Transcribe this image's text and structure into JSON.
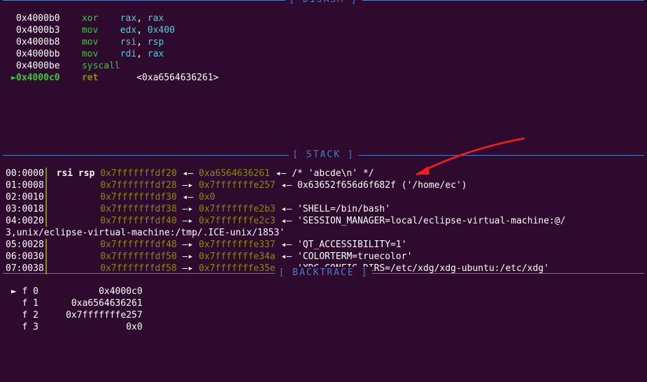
{
  "sections": {
    "disasm": "DISASM",
    "stack": "STACK",
    "backtrace": "BACKTRACE"
  },
  "disasm": [
    {
      "pc": "   ",
      "addr": "0x4000b0",
      "op": "xor",
      "args_a": "rax",
      "sep": ", ",
      "args_b": "rax",
      "op_color": "green",
      "a_color": "cyan",
      "b_color": "cyan"
    },
    {
      "pc": "   ",
      "addr": "0x4000b3",
      "op": "mov",
      "args_a": "edx",
      "sep": ", ",
      "args_b": "0x400",
      "op_color": "green",
      "a_color": "cyan",
      "b_color": "cyan"
    },
    {
      "pc": "   ",
      "addr": "0x4000b8",
      "op": "mov",
      "args_a": "rsi",
      "sep": ", ",
      "args_b": "rsp",
      "op_color": "green",
      "a_color": "cyan",
      "b_color": "cyan"
    },
    {
      "pc": "   ",
      "addr": "0x4000bb",
      "op": "mov",
      "args_a": "rdi",
      "sep": ", ",
      "args_b": "rax",
      "op_color": "green",
      "a_color": "cyan",
      "b_color": "cyan"
    },
    {
      "pc": "   ",
      "addr": "0x4000be",
      "op": "syscall",
      "args_a": "",
      "sep": "",
      "args_b": "",
      "op_color": "green",
      "a_color": "",
      "b_color": ""
    },
    {
      "pc": " ► ",
      "addr": "0x4000c0",
      "op": "ret",
      "args_a": "",
      "sep": "   ",
      "args_b": "<0xa6564636261>",
      "op_color": "olive",
      "a_color": "",
      "b_color": "white",
      "addr_color": "green",
      "pc_color": "green",
      "bold": true
    }
  ],
  "stack": [
    {
      "idx": "00:0000",
      "sep": "│",
      "regs": " rsi rsp ",
      "addr": "0x7fffffffdf20",
      "v1": "0xa6564636261",
      "v2": "",
      "v3": "",
      "note": "/* 'abcde\\n' */",
      "regs_bold": true
    },
    {
      "idx": "01:0008",
      "sep": "│",
      "regs": "         ",
      "addr": "0x7fffffffdf28",
      "v1": "0x7fffffffe257",
      "v2": "",
      "v3": "0x63652f656d6f682f",
      "note": "('/home/ec')"
    },
    {
      "idx": "02:0010",
      "sep": "│",
      "regs": "         ",
      "addr": "0x7fffffffdf30",
      "v1": "0x0",
      "v2": "",
      "v3": "",
      "note": ""
    },
    {
      "idx": "03:0018",
      "sep": "│",
      "regs": "         ",
      "addr": "0x7fffffffdf38",
      "v1": "0x7fffffffe2b3",
      "v2": "",
      "v3": "",
      "note": "'SHELL=/bin/bash'"
    },
    {
      "idx": "04:0020",
      "sep": "│",
      "regs": "         ",
      "addr": "0x7fffffffdf40",
      "v1": "0x7fffffffe2c3",
      "v2": "",
      "v3": "",
      "note": "'SESSION_MANAGER=local/eclipse-virtual-machine:@/",
      "wrap": "3,unix/eclipse-virtual-machine:/tmp/.ICE-unix/1853'"
    },
    {
      "idx": "05:0028",
      "sep": "│",
      "regs": "         ",
      "addr": "0x7fffffffdf48",
      "v1": "0x7fffffffe337",
      "v2": "",
      "v3": "",
      "note": "'QT_ACCESSIBILITY=1'"
    },
    {
      "idx": "06:0030",
      "sep": "│",
      "regs": "         ",
      "addr": "0x7fffffffdf50",
      "v1": "0x7fffffffe34a",
      "v2": "",
      "v3": "",
      "note": "'COLORTERM=truecolor'"
    },
    {
      "idx": "07:0038",
      "sep": "│",
      "regs": "         ",
      "addr": "0x7fffffffdf58",
      "v1": "0x7fffffffe35e",
      "v2": "",
      "v3": "",
      "note": "'XDG_CONFIG_DIRS=/etc/xdg/xdg-ubuntu:/etc/xdg'"
    }
  ],
  "backtrace": [
    {
      "marker": " ► ",
      "idx": "f 0",
      "addr": "0x4000c0"
    },
    {
      "marker": "   ",
      "idx": "f 1",
      "addr": "0xa6564636261"
    },
    {
      "marker": "   ",
      "idx": "f 2",
      "addr": "0x7fffffffe257"
    },
    {
      "marker": "   ",
      "idx": "f 3",
      "addr": "0x0"
    }
  ],
  "colors": {
    "bg": "#2d0a2e",
    "border": "#4c7cc1",
    "olive": "#8a8a00",
    "green": "#33cc33",
    "cyan": "#4fcfd6",
    "arrow": "#ff1a1a"
  }
}
